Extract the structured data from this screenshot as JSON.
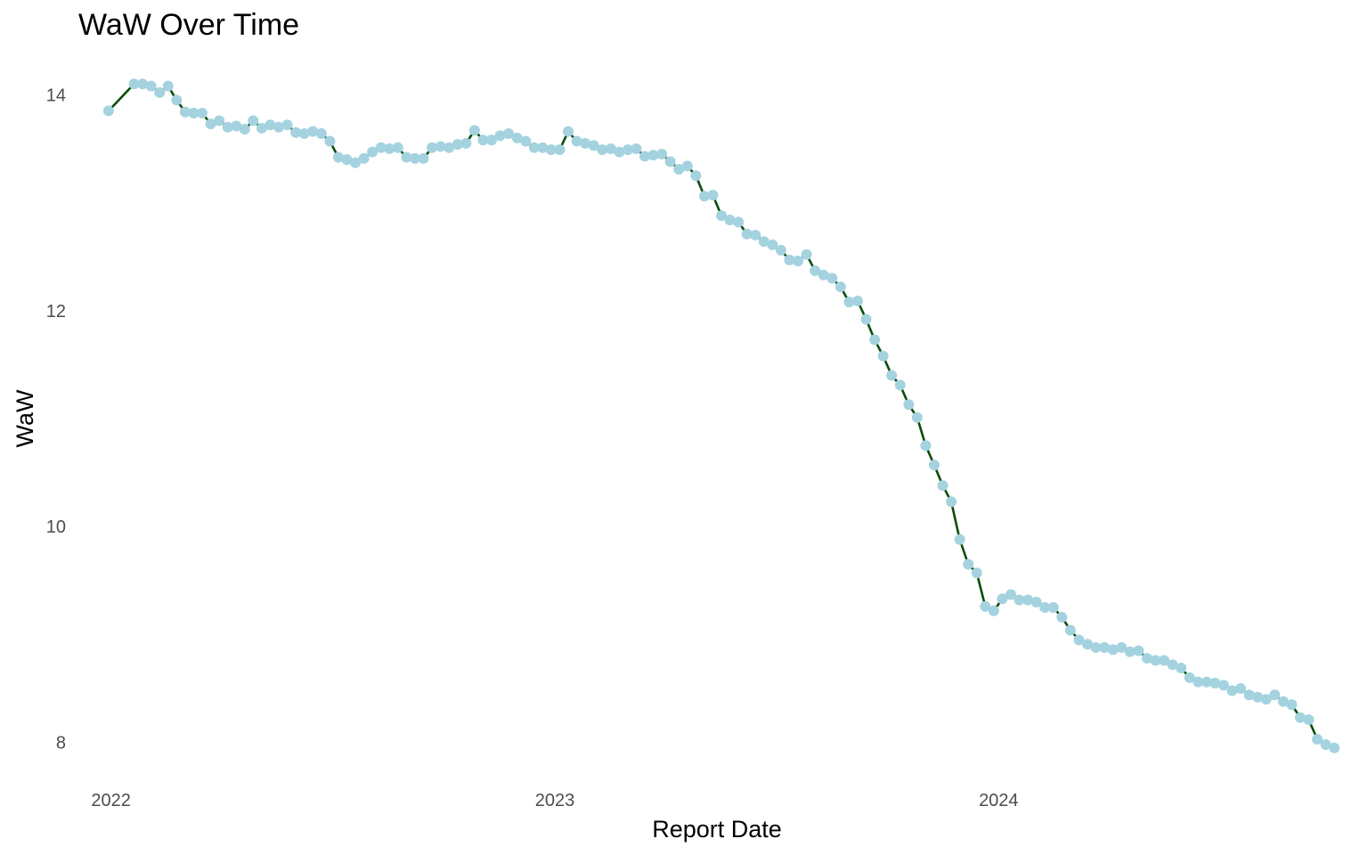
{
  "chart_data": {
    "type": "line",
    "title": "WaW Over Time",
    "xlabel": "Report Date",
    "ylabel": "WaW",
    "x_ticks": [
      {
        "label": "2022",
        "date": "2022-01-01"
      },
      {
        "label": "2023",
        "date": "2023-01-01"
      },
      {
        "label": "2024",
        "date": "2024-01-01"
      }
    ],
    "y_ticks": [
      8,
      10,
      12,
      14
    ],
    "xlim": [
      "2021-12-03",
      "2024-10-19"
    ],
    "ylim": [
      7.7,
      14.3
    ],
    "grid": false,
    "legend": "none",
    "colors": {
      "line": "#0b4d0b",
      "points": "#a4d3df"
    },
    "series": [
      {
        "x": [
          "2021-12-30",
          "2022-01-20",
          "2022-01-27",
          "2022-02-03",
          "2022-02-10",
          "2022-02-17",
          "2022-02-24",
          "2022-03-03",
          "2022-03-10",
          "2022-03-17",
          "2022-03-24",
          "2022-03-31",
          "2022-04-07",
          "2022-04-14",
          "2022-04-21",
          "2022-04-28",
          "2022-05-05",
          "2022-05-12",
          "2022-05-19",
          "2022-05-26",
          "2022-06-02",
          "2022-06-09",
          "2022-06-16",
          "2022-06-23",
          "2022-06-30",
          "2022-07-07",
          "2022-07-14",
          "2022-07-21",
          "2022-07-28",
          "2022-08-04",
          "2022-08-11",
          "2022-08-18",
          "2022-08-25",
          "2022-09-01",
          "2022-09-08",
          "2022-09-15",
          "2022-09-22",
          "2022-09-29",
          "2022-10-06",
          "2022-10-13",
          "2022-10-20",
          "2022-10-27",
          "2022-11-03",
          "2022-11-10",
          "2022-11-17",
          "2022-11-24",
          "2022-12-01",
          "2022-12-08",
          "2022-12-15",
          "2022-12-22",
          "2022-12-29",
          "2023-01-05",
          "2023-01-12",
          "2023-01-19",
          "2023-01-26",
          "2023-02-02",
          "2023-02-09",
          "2023-02-16",
          "2023-02-23",
          "2023-03-02",
          "2023-03-09",
          "2023-03-16",
          "2023-03-23",
          "2023-03-30",
          "2023-04-06",
          "2023-04-13",
          "2023-04-20",
          "2023-04-27",
          "2023-05-04",
          "2023-05-11",
          "2023-05-18",
          "2023-05-25",
          "2023-06-01",
          "2023-06-08",
          "2023-06-15",
          "2023-06-22",
          "2023-06-29",
          "2023-07-06",
          "2023-07-13",
          "2023-07-20",
          "2023-07-27",
          "2023-08-03",
          "2023-08-10",
          "2023-08-17",
          "2023-08-24",
          "2023-08-31",
          "2023-09-07",
          "2023-09-14",
          "2023-09-21",
          "2023-09-28",
          "2023-10-05",
          "2023-10-12",
          "2023-10-19",
          "2023-10-26",
          "2023-11-02",
          "2023-11-09",
          "2023-11-16",
          "2023-11-23",
          "2023-11-30",
          "2023-12-07",
          "2023-12-14",
          "2023-12-21",
          "2023-12-28",
          "2024-01-04",
          "2024-01-11",
          "2024-01-18",
          "2024-01-25",
          "2024-02-01",
          "2024-02-08",
          "2024-02-15",
          "2024-02-22",
          "2024-02-29",
          "2024-03-07",
          "2024-03-14",
          "2024-03-21",
          "2024-03-28",
          "2024-04-04",
          "2024-04-11",
          "2024-04-18",
          "2024-04-25",
          "2024-05-02",
          "2024-05-09",
          "2024-05-16",
          "2024-05-23",
          "2024-05-30",
          "2024-06-06",
          "2024-06-13",
          "2024-06-20",
          "2024-06-27",
          "2024-07-04",
          "2024-07-11",
          "2024-07-18",
          "2024-07-25",
          "2024-08-01",
          "2024-08-08",
          "2024-08-15",
          "2024-08-22",
          "2024-08-29",
          "2024-09-05",
          "2024-09-12",
          "2024-09-19",
          "2024-09-26",
          "2024-10-03"
        ],
        "y": [
          13.85,
          14.1,
          14.1,
          14.08,
          14.02,
          14.08,
          13.95,
          13.84,
          13.83,
          13.83,
          13.73,
          13.76,
          13.7,
          13.71,
          13.68,
          13.76,
          13.69,
          13.72,
          13.7,
          13.72,
          13.65,
          13.64,
          13.66,
          13.64,
          13.57,
          13.42,
          13.4,
          13.37,
          13.41,
          13.47,
          13.51,
          13.5,
          13.51,
          13.42,
          13.41,
          13.41,
          13.51,
          13.52,
          13.51,
          13.54,
          13.55,
          13.67,
          13.58,
          13.58,
          13.62,
          13.64,
          13.6,
          13.57,
          13.51,
          13.51,
          13.49,
          13.49,
          13.66,
          13.57,
          13.55,
          13.53,
          13.49,
          13.5,
          13.47,
          13.49,
          13.5,
          13.43,
          13.44,
          13.45,
          13.38,
          13.31,
          13.34,
          13.25,
          13.06,
          13.07,
          12.88,
          12.84,
          12.82,
          12.71,
          12.7,
          12.64,
          12.61,
          12.56,
          12.47,
          12.46,
          12.52,
          12.37,
          12.33,
          12.3,
          12.22,
          12.08,
          12.09,
          11.92,
          11.73,
          11.58,
          11.4,
          11.31,
          11.13,
          11.01,
          10.75,
          10.57,
          10.38,
          10.23,
          9.88,
          9.65,
          9.57,
          9.26,
          9.22,
          9.33,
          9.37,
          9.32,
          9.32,
          9.3,
          9.25,
          9.25,
          9.16,
          9.04,
          8.95,
          8.91,
          8.88,
          8.88,
          8.86,
          8.88,
          8.84,
          8.85,
          8.78,
          8.76,
          8.76,
          8.72,
          8.69,
          8.6,
          8.56,
          8.56,
          8.55,
          8.53,
          8.48,
          8.5,
          8.44,
          8.42,
          8.4,
          8.44,
          8.38,
          8.35,
          8.23,
          8.21,
          8.03,
          7.98,
          7.95
        ]
      }
    ]
  }
}
